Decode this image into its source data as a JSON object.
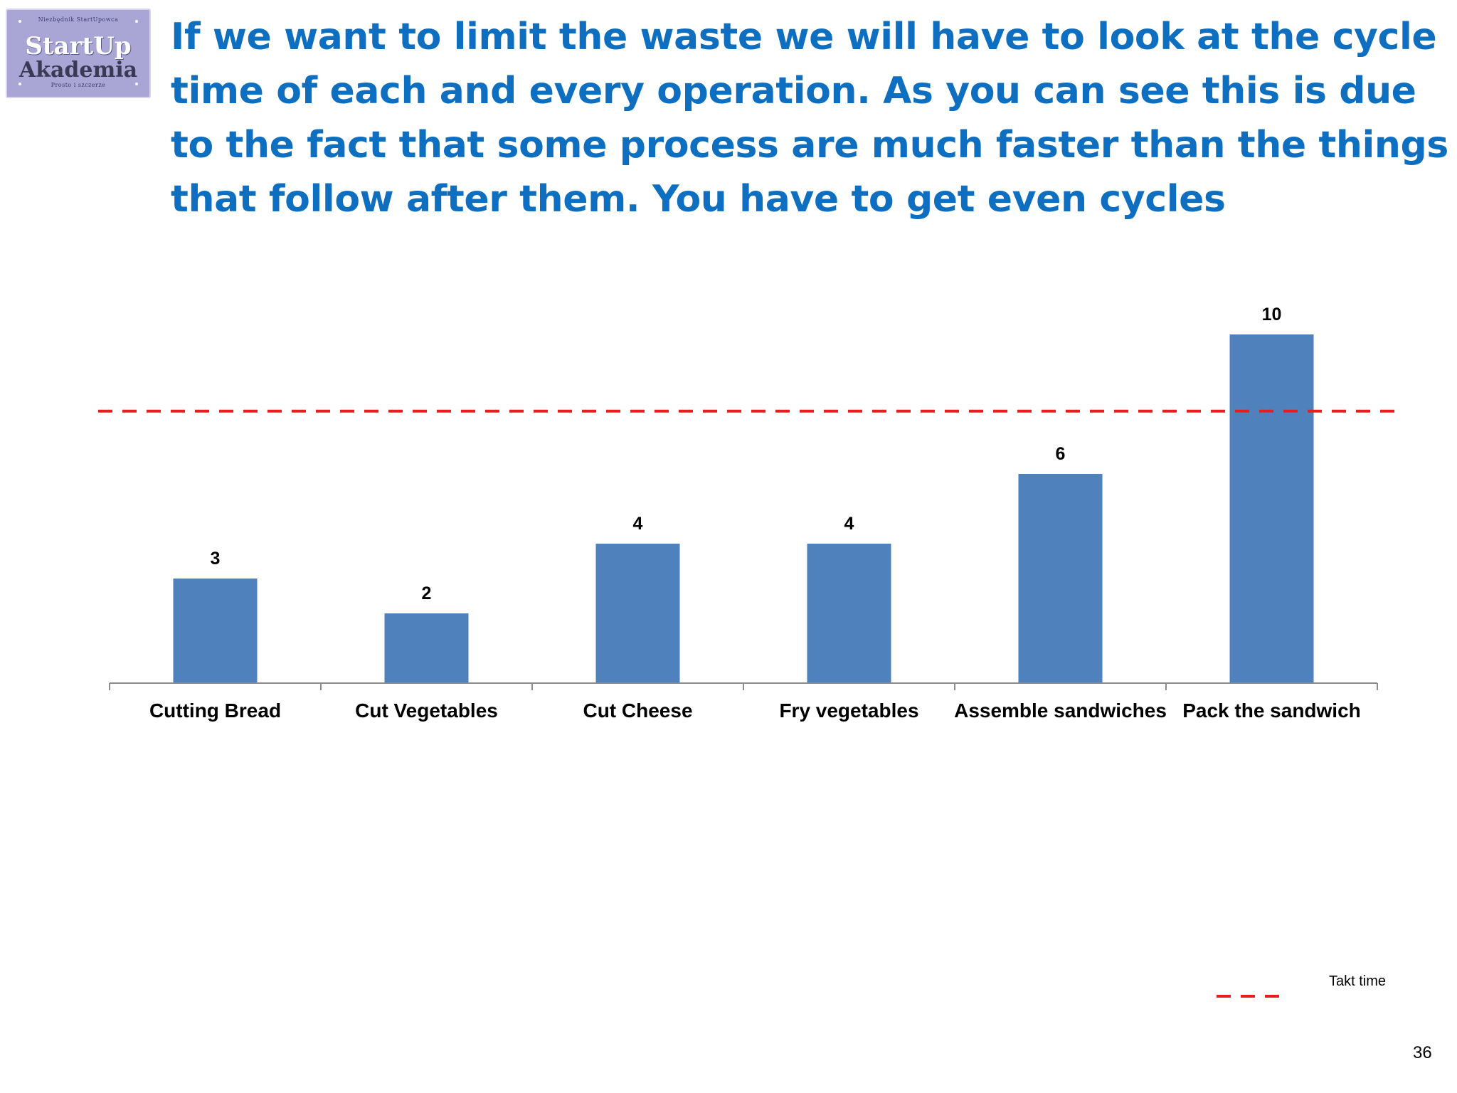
{
  "logo": {
    "top_text": "Niezbędnik StartUpowca",
    "line1": "StartUp",
    "line2": "Akademia",
    "bottom_text": "Prosto i szczerze"
  },
  "title": "If we want to limit the waste we will have to look at the cycle time of each and every operation. As you can see this is due to the fact that some process are much faster than the things that follow after them. You have to get even cycles",
  "chart_data": {
    "type": "bar",
    "title": "",
    "xlabel": "",
    "ylabel": "",
    "categories": [
      "Cutting Bread",
      "Cut Vegetables",
      "Cut Cheese",
      "Fry vegetables",
      "Assemble sandwiches",
      "Pack the sandwich"
    ],
    "values": [
      3,
      2,
      4,
      4,
      6,
      10
    ],
    "data_labels": [
      "3",
      "2",
      "4",
      "4",
      "6",
      "10"
    ],
    "ylim": [
      0,
      10.5
    ],
    "grid": false,
    "bar_color": "#4f81bd",
    "reference_line": {
      "name": "Takt time",
      "value": 7.8,
      "color": "#e81e1e",
      "style": "dashed"
    },
    "legend": {
      "position": "bottom-right",
      "entries": [
        "Takt time"
      ]
    }
  },
  "page_number": "36"
}
